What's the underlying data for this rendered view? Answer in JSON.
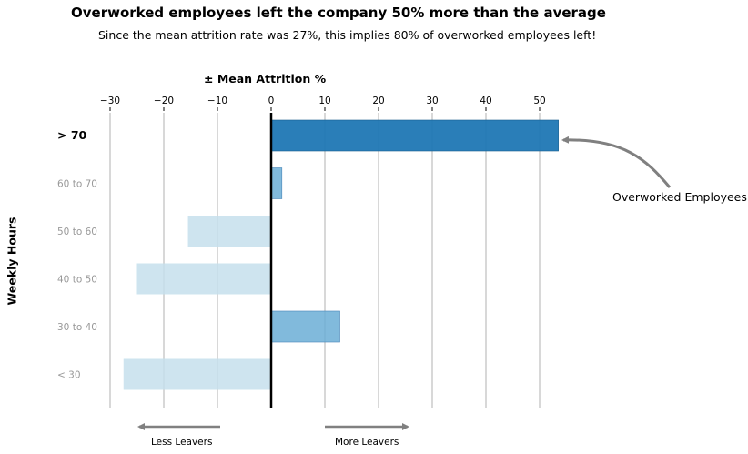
{
  "chart_data": {
    "type": "bar",
    "orientation": "horizontal",
    "title": "Overworked employees left the company 50% more than the average",
    "subtitle": "Since the mean attrition rate was 27%, this implies 80% of overworked employees left!",
    "xlabel": "± Mean Attrition %",
    "ylabel": "Weekly Hours",
    "xlim": [
      -30,
      55
    ],
    "xticks": [
      -30,
      -20,
      -10,
      0,
      10,
      20,
      30,
      40,
      50
    ],
    "xtick_labels": [
      "−30",
      "−20",
      "−10",
      "0",
      "10",
      "20",
      "30",
      "40",
      "50"
    ],
    "grid": "vertical",
    "categories": [
      "> 70",
      "60 to 70",
      "50 to 60",
      "40 to 50",
      "30 to 40",
      "< 30"
    ],
    "values": [
      53.5,
      2.0,
      -15.5,
      -25.0,
      12.8,
      -27.5
    ],
    "highlight_category": "> 70",
    "colors": {
      "highlight": "#1f77b4",
      "positive": "#6baed6",
      "negative": "#c6dfec",
      "zero_line": "#000000",
      "grid": "#b0b0b0",
      "category_label": "#999999",
      "arrow": "#808080"
    },
    "annotations": {
      "highlight_label": "Overworked Employees",
      "less_label": "Less Leavers",
      "more_label": "More Leavers"
    }
  }
}
